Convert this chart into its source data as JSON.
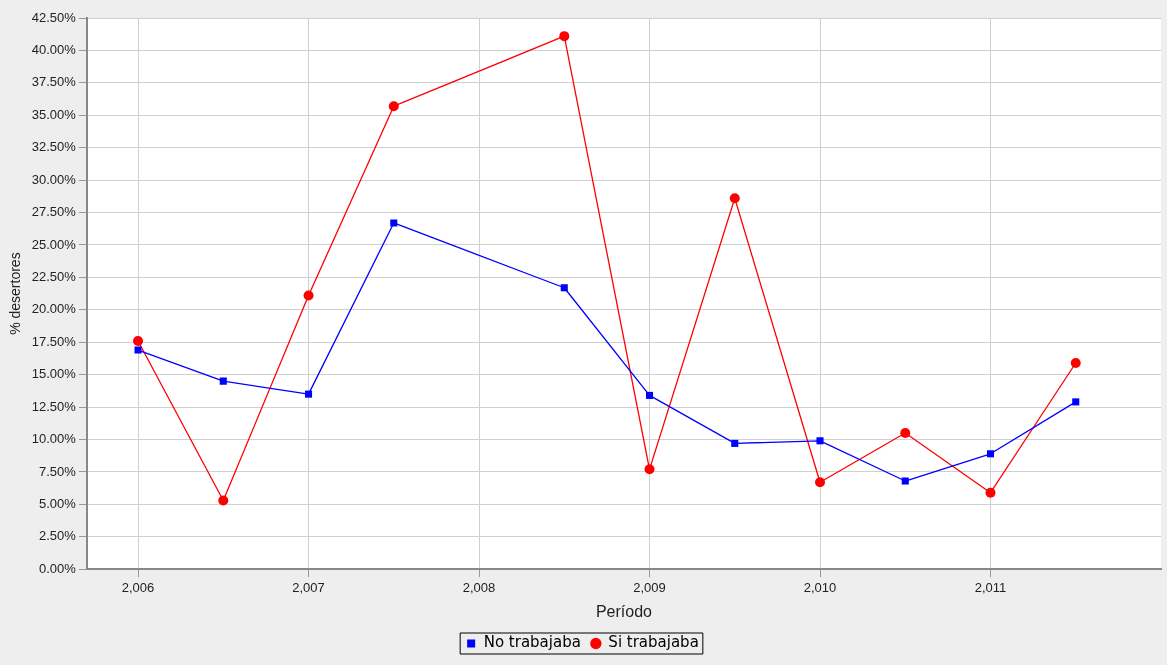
{
  "chart_data": {
    "type": "line",
    "xlabel": "Período",
    "ylabel": "% desertores",
    "xlim": [
      2005.7,
      2012
    ],
    "xticks": [
      {
        "value": 2006,
        "label": "2,006"
      },
      {
        "value": 2007,
        "label": "2,007"
      },
      {
        "value": 2008,
        "label": "2,008"
      },
      {
        "value": 2009,
        "label": "2,009"
      },
      {
        "value": 2010,
        "label": "2,010"
      },
      {
        "value": 2011,
        "label": "2,011"
      }
    ],
    "ylim": [
      0,
      42.5
    ],
    "yticks": [
      {
        "value": 0,
        "label": "0.00%"
      },
      {
        "value": 2.5,
        "label": "2.50%"
      },
      {
        "value": 5,
        "label": "5.00%"
      },
      {
        "value": 7.5,
        "label": "7.50%"
      },
      {
        "value": 10,
        "label": "10.00%"
      },
      {
        "value": 12.5,
        "label": "12.50%"
      },
      {
        "value": 15,
        "label": "15.00%"
      },
      {
        "value": 17.5,
        "label": "17.50%"
      },
      {
        "value": 20,
        "label": "20.00%"
      },
      {
        "value": 22.5,
        "label": "22.50%"
      },
      {
        "value": 25,
        "label": "25.00%"
      },
      {
        "value": 27.5,
        "label": "27.50%"
      },
      {
        "value": 30,
        "label": "30.00%"
      },
      {
        "value": 32.5,
        "label": "32.50%"
      },
      {
        "value": 35,
        "label": "35.00%"
      },
      {
        "value": 37.5,
        "label": "37.50%"
      },
      {
        "value": 40,
        "label": "40.00%"
      },
      {
        "value": 42.5,
        "label": "42.50%"
      }
    ],
    "grid": true,
    "legend": "bottom",
    "line_style": "solid",
    "series": [
      {
        "name": "No trabajaba",
        "color": "#0000ff",
        "marker": "square",
        "x": [
          2006,
          2006.5,
          2007,
          2007.5,
          2008.5,
          2009,
          2009.5,
          2010,
          2010.5,
          2011,
          2011.5
        ],
        "values": [
          16.9,
          14.5,
          13.5,
          26.7,
          21.7,
          13.4,
          9.7,
          9.9,
          6.8,
          8.9,
          12.9
        ]
      },
      {
        "name": "Si trabajaba",
        "color": "#ff0000",
        "marker": "circle",
        "x": [
          2006,
          2006.5,
          2007,
          2007.5,
          2008.5,
          2009,
          2009.5,
          2010,
          2010.5,
          2011,
          2011.5
        ],
        "values": [
          17.6,
          5.3,
          21.1,
          35.7,
          41.1,
          7.7,
          28.6,
          6.7,
          10.5,
          5.9,
          15.9
        ]
      }
    ]
  }
}
